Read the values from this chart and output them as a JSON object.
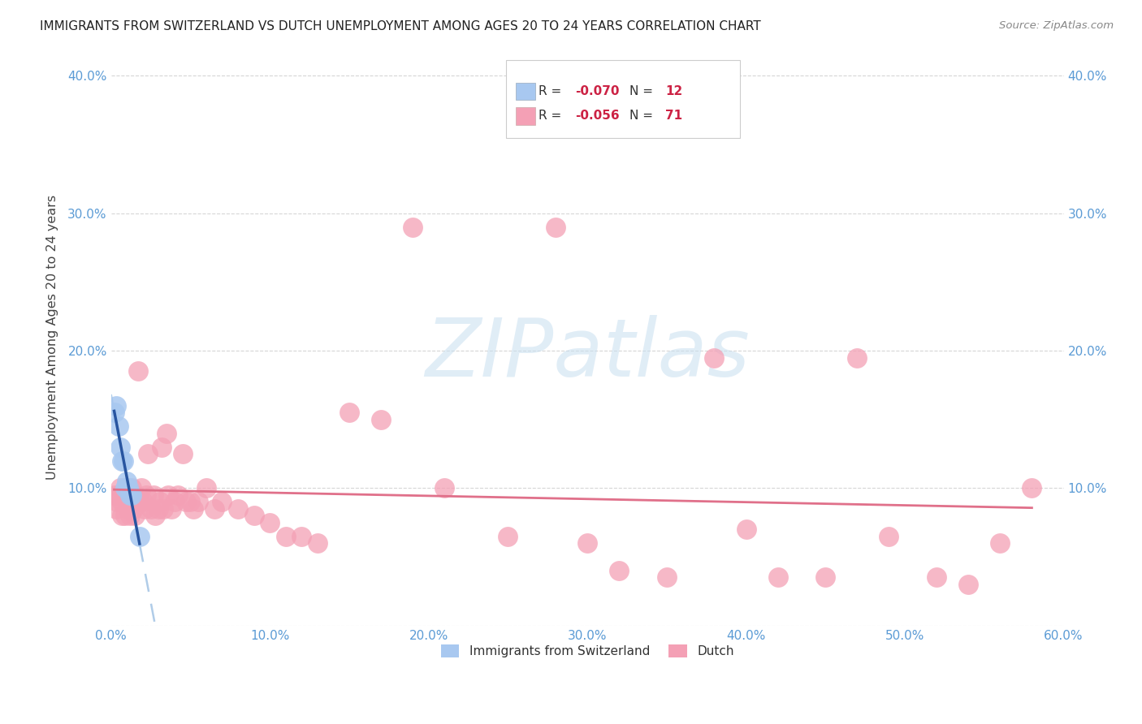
{
  "title": "IMMIGRANTS FROM SWITZERLAND VS DUTCH UNEMPLOYMENT AMONG AGES 20 TO 24 YEARS CORRELATION CHART",
  "source": "Source: ZipAtlas.com",
  "ylabel": "Unemployment Among Ages 20 to 24 years",
  "watermark_text": "ZIPatlas",
  "xlim": [
    0.0,
    0.6
  ],
  "ylim": [
    0.0,
    0.42
  ],
  "xticks": [
    0.0,
    0.1,
    0.2,
    0.3,
    0.4,
    0.5,
    0.6
  ],
  "xtick_labels": [
    "0.0%",
    "10.0%",
    "20.0%",
    "30.0%",
    "40.0%",
    "50.0%",
    "60.0%"
  ],
  "yticks": [
    0.0,
    0.1,
    0.2,
    0.3,
    0.4
  ],
  "ytick_labels": [
    "",
    "10.0%",
    "20.0%",
    "30.0%",
    "40.0%"
  ],
  "swiss_color": "#a8c8f0",
  "dutch_color": "#f4a0b5",
  "swiss_line_color": "#2855a0",
  "dutch_line_color": "#e0708a",
  "swiss_dash_color": "#b0cce8",
  "background_color": "#ffffff",
  "tick_color": "#5b9bd5",
  "swiss_x": [
    0.002,
    0.003,
    0.005,
    0.006,
    0.007,
    0.008,
    0.009,
    0.01,
    0.011,
    0.012,
    0.013,
    0.018
  ],
  "swiss_y": [
    0.155,
    0.16,
    0.145,
    0.13,
    0.12,
    0.12,
    0.1,
    0.105,
    0.1,
    0.095,
    0.095,
    0.065
  ],
  "dutch_x": [
    0.002,
    0.003,
    0.004,
    0.005,
    0.006,
    0.007,
    0.007,
    0.008,
    0.009,
    0.01,
    0.01,
    0.011,
    0.012,
    0.012,
    0.013,
    0.014,
    0.015,
    0.015,
    0.016,
    0.017,
    0.018,
    0.019,
    0.02,
    0.021,
    0.022,
    0.023,
    0.025,
    0.027,
    0.028,
    0.03,
    0.031,
    0.032,
    0.033,
    0.035,
    0.036,
    0.038,
    0.04,
    0.042,
    0.045,
    0.047,
    0.05,
    0.052,
    0.055,
    0.06,
    0.065,
    0.07,
    0.08,
    0.09,
    0.1,
    0.11,
    0.12,
    0.13,
    0.15,
    0.17,
    0.19,
    0.21,
    0.25,
    0.28,
    0.3,
    0.32,
    0.35,
    0.38,
    0.4,
    0.42,
    0.45,
    0.47,
    0.49,
    0.52,
    0.54,
    0.56,
    0.58
  ],
  "dutch_y": [
    0.095,
    0.085,
    0.09,
    0.095,
    0.1,
    0.09,
    0.08,
    0.095,
    0.08,
    0.09,
    0.1,
    0.085,
    0.095,
    0.08,
    0.1,
    0.085,
    0.095,
    0.08,
    0.09,
    0.185,
    0.09,
    0.1,
    0.09,
    0.085,
    0.095,
    0.125,
    0.085,
    0.095,
    0.08,
    0.085,
    0.09,
    0.13,
    0.085,
    0.14,
    0.095,
    0.085,
    0.09,
    0.095,
    0.125,
    0.09,
    0.09,
    0.085,
    0.09,
    0.1,
    0.085,
    0.09,
    0.085,
    0.08,
    0.075,
    0.065,
    0.065,
    0.06,
    0.155,
    0.15,
    0.29,
    0.1,
    0.065,
    0.29,
    0.06,
    0.04,
    0.035,
    0.195,
    0.07,
    0.035,
    0.035,
    0.195,
    0.065,
    0.035,
    0.03,
    0.06,
    0.1
  ]
}
